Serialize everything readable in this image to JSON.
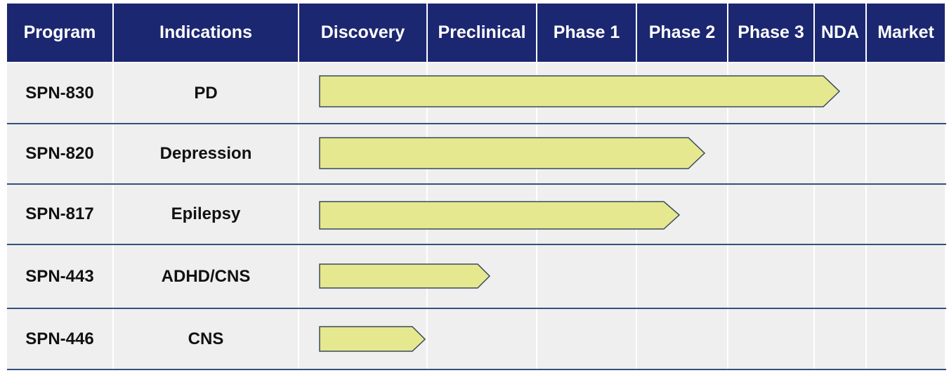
{
  "table": {
    "header": [
      "Program",
      "Indications",
      "Discovery",
      "Preclinical",
      "Phase 1",
      "Phase 2",
      "Phase 3",
      "NDA",
      "Market"
    ],
    "rows": [
      [
        "SPN-830",
        "PD"
      ],
      [
        "SPN-820",
        "Depression"
      ],
      [
        "SPN-817",
        "Epilepsy"
      ],
      [
        "SPN-443",
        "ADHD/CNS"
      ],
      [
        "SPN-446",
        "CNS"
      ]
    ]
  }
}
